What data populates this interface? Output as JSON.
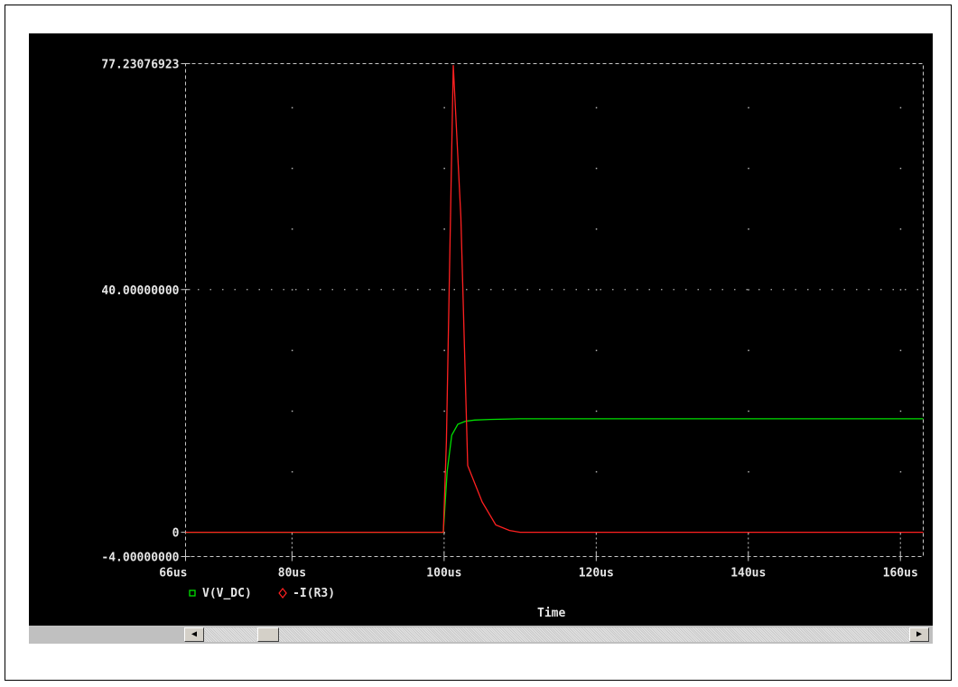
{
  "chart_data": {
    "type": "line",
    "xlabel": "Time",
    "x_unit": "us",
    "xlim": [
      66,
      163
    ],
    "ylim": [
      -4,
      77.23076923
    ],
    "x_ticks": [
      66,
      80,
      100,
      120,
      140,
      160
    ],
    "x_tick_labels": [
      "66us",
      "80us",
      "100us",
      "120us",
      "140us",
      "160us"
    ],
    "y_ticks": [
      -4,
      0,
      40,
      77.23076923
    ],
    "y_tick_labels": [
      "-4.00000000",
      "0",
      "40.00000000",
      "77.23076923"
    ],
    "grid": true,
    "legend_position": "bottom-left",
    "series": [
      {
        "name": "V(V_DC)",
        "marker": "square",
        "color": "#00e000",
        "x": [
          66,
          99.9,
          100.4,
          101,
          101.8,
          102.8,
          104,
          106,
          110,
          163
        ],
        "y": [
          0,
          0,
          10,
          16,
          17.8,
          18.3,
          18.5,
          18.6,
          18.7,
          18.7
        ]
      },
      {
        "name": "-I(R3)",
        "marker": "diamond",
        "color": "#ff2020",
        "x": [
          66,
          99.9,
          100.3,
          101.2,
          102.2,
          103.1,
          105,
          106.8,
          108.6,
          110,
          163
        ],
        "y": [
          0,
          0,
          15,
          77,
          52,
          11,
          5,
          1.2,
          0.3,
          0,
          0
        ]
      }
    ]
  },
  "scrollbar": {
    "left_arrow": "◀",
    "right_arrow": "▶"
  }
}
